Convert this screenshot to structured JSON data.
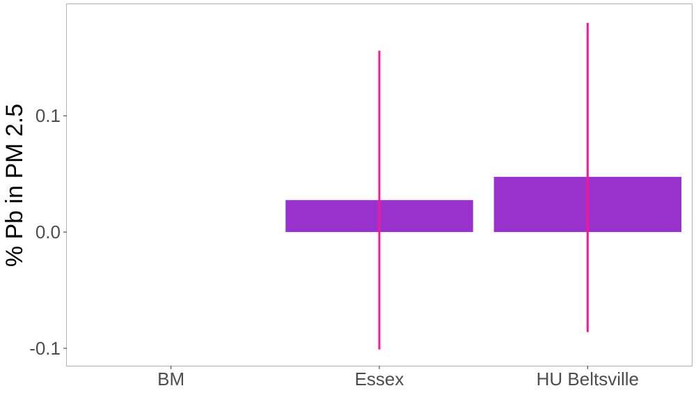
{
  "chart_data": {
    "type": "bar",
    "title": "",
    "xlabel": "",
    "ylabel": "% Pb in PM 2.5",
    "categories": [
      "BM",
      "Essex",
      "HU Beltsville"
    ],
    "values": [
      null,
      0.0275,
      0.0475
    ],
    "error_bars": [
      null,
      {
        "low": -0.101,
        "high": 0.156
      },
      {
        "low": -0.086,
        "high": 0.18
      }
    ],
    "ylim": [
      -0.115,
      0.196
    ],
    "yticks": [
      -0.1,
      0.0,
      0.1
    ],
    "ytick_labels": [
      "-0.1",
      "0.0",
      "0.1"
    ],
    "grid": false,
    "legend": "none",
    "colors": {
      "bar": "#9932CC",
      "error_bar": "#FF1493",
      "panel_border": "#b3b3b3",
      "tick_text": "#4d4d4d"
    }
  }
}
